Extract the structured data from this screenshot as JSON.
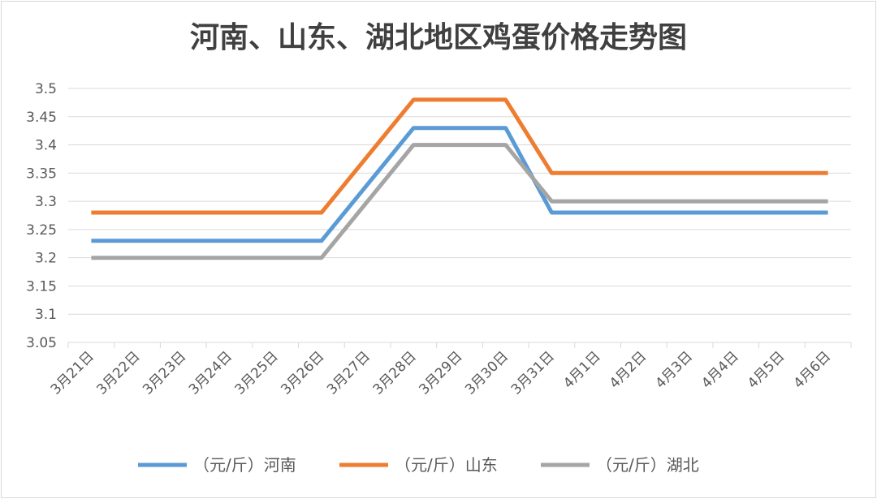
{
  "chart_data": {
    "type": "line",
    "title": "河南、山东、湖北地区鸡蛋价格走势图",
    "categories": [
      "3月21日",
      "3月22日",
      "3月23日",
      "3月24日",
      "3月25日",
      "3月26日",
      "3月27日",
      "3月28日",
      "3月29日",
      "3月30日",
      "3月31日",
      "4月1日",
      "4月2日",
      "4月3日",
      "4月4日",
      "4月5日",
      "4月6日"
    ],
    "ylim": [
      3.05,
      3.5
    ],
    "yticks": [
      "3.05",
      "3.1",
      "3.15",
      "3.2",
      "3.25",
      "3.3",
      "3.35",
      "3.4",
      "3.45",
      "3.5"
    ],
    "grid": true,
    "legend_position": "bottom",
    "series": [
      {
        "name": "（元/斤）河南",
        "color": "#5b9bd5",
        "values": [
          3.23,
          3.23,
          3.23,
          3.23,
          3.23,
          3.23,
          null,
          3.43,
          3.43,
          3.43,
          3.28,
          3.28,
          3.28,
          3.28,
          3.28,
          3.28,
          3.28
        ]
      },
      {
        "name": "（元/斤）山东",
        "color": "#ed7d31",
        "values": [
          3.28,
          3.28,
          3.28,
          3.28,
          3.28,
          3.28,
          null,
          3.48,
          3.48,
          3.48,
          3.35,
          3.35,
          3.35,
          3.35,
          3.35,
          3.35,
          3.35
        ]
      },
      {
        "name": "（元/斤）湖北",
        "color": "#a5a5a5",
        "values": [
          3.2,
          3.2,
          3.2,
          3.2,
          3.2,
          3.2,
          null,
          3.4,
          3.4,
          3.4,
          3.3,
          3.3,
          3.3,
          3.3,
          3.3,
          3.3,
          3.3
        ]
      }
    ]
  }
}
